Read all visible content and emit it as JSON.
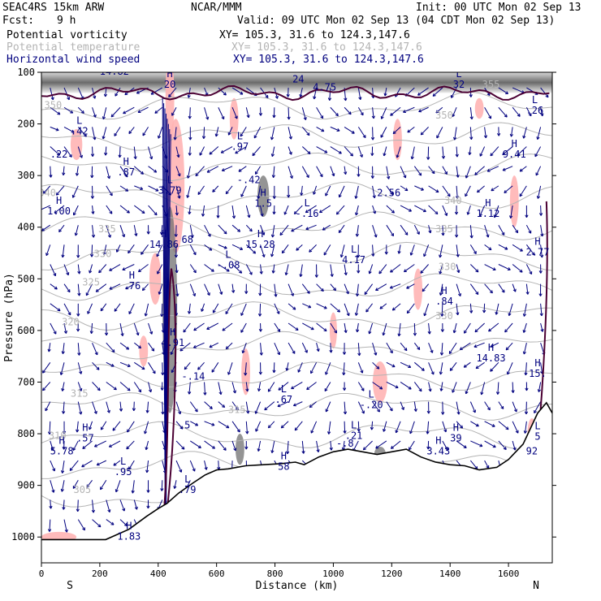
{
  "header": {
    "model": "SEAC4RS 15km ARW",
    "center": "NCAR/MMM",
    "init": "Init: 00 UTC Mon 02 Sep 13",
    "fcst_label": "Fcst:",
    "fcst_value": "9 h",
    "valid": "Valid: 09 UTC Mon 02 Sep 13 (04 CDT Mon 02 Sep 13)",
    "fields": [
      {
        "name": "Potential vorticity",
        "xy": "XY= 105.3, 31.6 to 124.3,147.6",
        "color": "#000000"
      },
      {
        "name": "Potential temperature",
        "xy": "XY= 105.3, 31.6 to 124.3,147.6",
        "color": "#b4b4b4"
      },
      {
        "name": "Horizontal wind speed",
        "xy": "XY= 105.3, 31.6 to 124.3,147.6",
        "color": "#00007f"
      }
    ]
  },
  "chart_data": {
    "type": "cross-section",
    "xlabel": "Distance (km)",
    "ylabel": "Pressure (hPa)",
    "xlim": [
      0,
      1750
    ],
    "ylim": [
      1050,
      100
    ],
    "x_ticks": [
      "0",
      "200",
      "400",
      "600",
      "800",
      "1000",
      "1200",
      "1400",
      "1600"
    ],
    "y_ticks": [
      "100",
      "200",
      "300",
      "400",
      "500",
      "600",
      "700",
      "800",
      "900",
      "1000"
    ],
    "left_end": "S",
    "right_end": "N",
    "theta_contours": [
      {
        "label": "305",
        "x": 140,
        "p": 915
      },
      {
        "label": "310",
        "x": 55,
        "p": 810
      },
      {
        "label": "315",
        "x": 130,
        "p": 728
      },
      {
        "label": "315",
        "x": 670,
        "p": 760
      },
      {
        "label": "320",
        "x": 100,
        "p": 590
      },
      {
        "label": "325",
        "x": 170,
        "p": 513
      },
      {
        "label": "330",
        "x": 210,
        "p": 458
      },
      {
        "label": "330",
        "x": 1390,
        "p": 483
      },
      {
        "label": "330",
        "x": 1380,
        "p": 578
      },
      {
        "label": "335",
        "x": 225,
        "p": 410
      },
      {
        "label": "335",
        "x": 1380,
        "p": 410
      },
      {
        "label": "340",
        "x": 20,
        "p": 340
      },
      {
        "label": "340",
        "x": 1410,
        "p": 355
      },
      {
        "label": "350",
        "x": 1380,
        "p": 190
      },
      {
        "label": "350",
        "x": 40,
        "p": 170
      },
      {
        "label": "355",
        "x": 1540,
        "p": 130
      }
    ],
    "extrema": [
      {
        "type": "H",
        "value": "14.82",
        "x": 250,
        "p": 105
      },
      {
        "type": "H",
        "value": "20",
        "x": 440,
        "p": 130
      },
      {
        "type": "L",
        "value": "24",
        "x": 880,
        "p": 120
      },
      {
        "type": "",
        "value": "4.75",
        "x": 970,
        "p": 135
      },
      {
        "type": "L",
        "value": "32",
        "x": 1430,
        "p": 130
      },
      {
        "type": "L",
        "value": ".26",
        "x": 1690,
        "p": 180
      },
      {
        "type": "L",
        "value": ".42",
        "x": 130,
        "p": 220
      },
      {
        "type": "",
        "value": ".22",
        "x": 60,
        "p": 265
      },
      {
        "type": "L",
        "value": ".97",
        "x": 680,
        "p": 250
      },
      {
        "type": "H",
        "value": "9.41",
        "x": 1620,
        "p": 265
      },
      {
        "type": "H",
        "value": ".87",
        "x": 290,
        "p": 300
      },
      {
        "type": "L",
        "value": "3.79",
        "x": 440,
        "p": 335
      },
      {
        "type": "",
        "value": "-.42",
        "x": 710,
        "p": 315
      },
      {
        "type": "",
        "value": "2.56",
        "x": 1190,
        "p": 340
      },
      {
        "type": "H",
        "value": "1.00",
        "x": 60,
        "p": 375
      },
      {
        "type": "H",
        "value": "1.5",
        "x": 760,
        "p": 360
      },
      {
        "type": "L",
        "value": "-.16",
        "x": 910,
        "p": 380
      },
      {
        "type": "H",
        "value": "1.12",
        "x": 1530,
        "p": 380
      },
      {
        "type": "H",
        "value": "14.86",
        "x": 420,
        "p": 440
      },
      {
        "type": "",
        "value": "68",
        "x": 500,
        "p": 430
      },
      {
        "type": "H",
        "value": "15.28",
        "x": 750,
        "p": 440
      },
      {
        "type": "L",
        "value": "4.17",
        "x": 1070,
        "p": 470
      },
      {
        "type": "H",
        "value": "2.77",
        "x": 1700,
        "p": 455
      },
      {
        "type": "L",
        "value": "-.08",
        "x": 640,
        "p": 480
      },
      {
        "type": "H",
        "value": ".76",
        "x": 310,
        "p": 520
      },
      {
        "type": "H",
        "value": ".84",
        "x": 1380,
        "p": 550
      },
      {
        "type": "H",
        "value": "4.91",
        "x": 450,
        "p": 630
      },
      {
        "type": "H",
        "value": "14.83",
        "x": 1540,
        "p": 660
      },
      {
        "type": "H",
        "value": "15.",
        "x": 1700,
        "p": 690
      },
      {
        "type": "",
        "value": "-.14",
        "x": 520,
        "p": 695
      },
      {
        "type": "L",
        "value": ".67",
        "x": 830,
        "p": 740
      },
      {
        "type": "L",
        "value": "-.20",
        "x": 1130,
        "p": 750
      },
      {
        "type": "",
        "value": ".5",
        "x": 490,
        "p": 790
      },
      {
        "type": "H",
        "value": ".57",
        "x": 150,
        "p": 815
      },
      {
        "type": "L",
        "value": ".21",
        "x": 1070,
        "p": 810
      },
      {
        "type": "",
        "value": "-.8",
        "x": 1040,
        "p": 825
      },
      {
        "type": "H",
        "value": "39",
        "x": 1420,
        "p": 815
      },
      {
        "type": "H",
        "value": "3.43",
        "x": 1360,
        "p": 840
      },
      {
        "type": "L",
        "value": "5",
        "x": 1700,
        "p": 812
      },
      {
        "type": "",
        "value": "92",
        "x": 1680,
        "p": 840
      },
      {
        "type": "H",
        "value": "5.78",
        "x": 70,
        "p": 840
      },
      {
        "type": "L",
        "value": ".95",
        "x": 280,
        "p": 880
      },
      {
        "type": "H",
        "value": "58",
        "x": 830,
        "p": 870
      },
      {
        "type": "L",
        "value": ".79",
        "x": 500,
        "p": 915
      },
      {
        "type": "H",
        "value": "1.83",
        "x": 300,
        "p": 1005
      }
    ],
    "terrain": [
      [
        0,
        1005
      ],
      [
        220,
        1005
      ],
      [
        300,
        985
      ],
      [
        360,
        960
      ],
      [
        400,
        945
      ],
      [
        430,
        935
      ],
      [
        470,
        915
      ],
      [
        520,
        895
      ],
      [
        560,
        880
      ],
      [
        600,
        870
      ],
      [
        640,
        868
      ],
      [
        700,
        862
      ],
      [
        760,
        860
      ],
      [
        820,
        858
      ],
      [
        870,
        855
      ],
      [
        900,
        860
      ],
      [
        950,
        845
      ],
      [
        1000,
        835
      ],
      [
        1050,
        830
      ],
      [
        1100,
        835
      ],
      [
        1150,
        840
      ],
      [
        1200,
        835
      ],
      [
        1250,
        830
      ],
      [
        1300,
        845
      ],
      [
        1350,
        855
      ],
      [
        1400,
        860
      ],
      [
        1450,
        862
      ],
      [
        1500,
        870
      ],
      [
        1560,
        865
      ],
      [
        1600,
        850
      ],
      [
        1650,
        820
      ],
      [
        1700,
        760
      ],
      [
        1730,
        740
      ],
      [
        1750,
        760
      ]
    ],
    "wind_speed_zones": [
      {
        "x": 460,
        "p": 320,
        "w": 60,
        "h": 260
      },
      {
        "x": 440,
        "p": 150,
        "w": 30,
        "h": 180
      },
      {
        "x": 390,
        "p": 500,
        "w": 40,
        "h": 100
      },
      {
        "x": 120,
        "p": 240,
        "w": 40,
        "h": 60
      },
      {
        "x": 660,
        "p": 190,
        "w": 30,
        "h": 80
      },
      {
        "x": 350,
        "p": 640,
        "w": 30,
        "h": 60
      },
      {
        "x": 700,
        "p": 680,
        "w": 30,
        "h": 90
      },
      {
        "x": 1160,
        "p": 700,
        "w": 50,
        "h": 80
      },
      {
        "x": 1290,
        "p": 520,
        "w": 30,
        "h": 80
      },
      {
        "x": 1220,
        "p": 230,
        "w": 30,
        "h": 80
      },
      {
        "x": 1620,
        "p": 350,
        "w": 30,
        "h": 100
      },
      {
        "x": 1680,
        "p": 800,
        "w": 30,
        "h": 60
      },
      {
        "x": 60,
        "p": 1000,
        "w": 120,
        "h": 20
      },
      {
        "x": 1500,
        "p": 170,
        "w": 30,
        "h": 40
      },
      {
        "x": 1000,
        "p": 600,
        "w": 25,
        "h": 70
      }
    ],
    "pv_shading": [
      {
        "x": 440,
        "p": 560,
        "w": 50,
        "h": 400
      },
      {
        "x": 760,
        "p": 340,
        "w": 40,
        "h": 80
      },
      {
        "x": 680,
        "p": 830,
        "w": 30,
        "h": 60
      },
      {
        "x": 1160,
        "p": 840,
        "w": 40,
        "h": 30
      }
    ]
  }
}
